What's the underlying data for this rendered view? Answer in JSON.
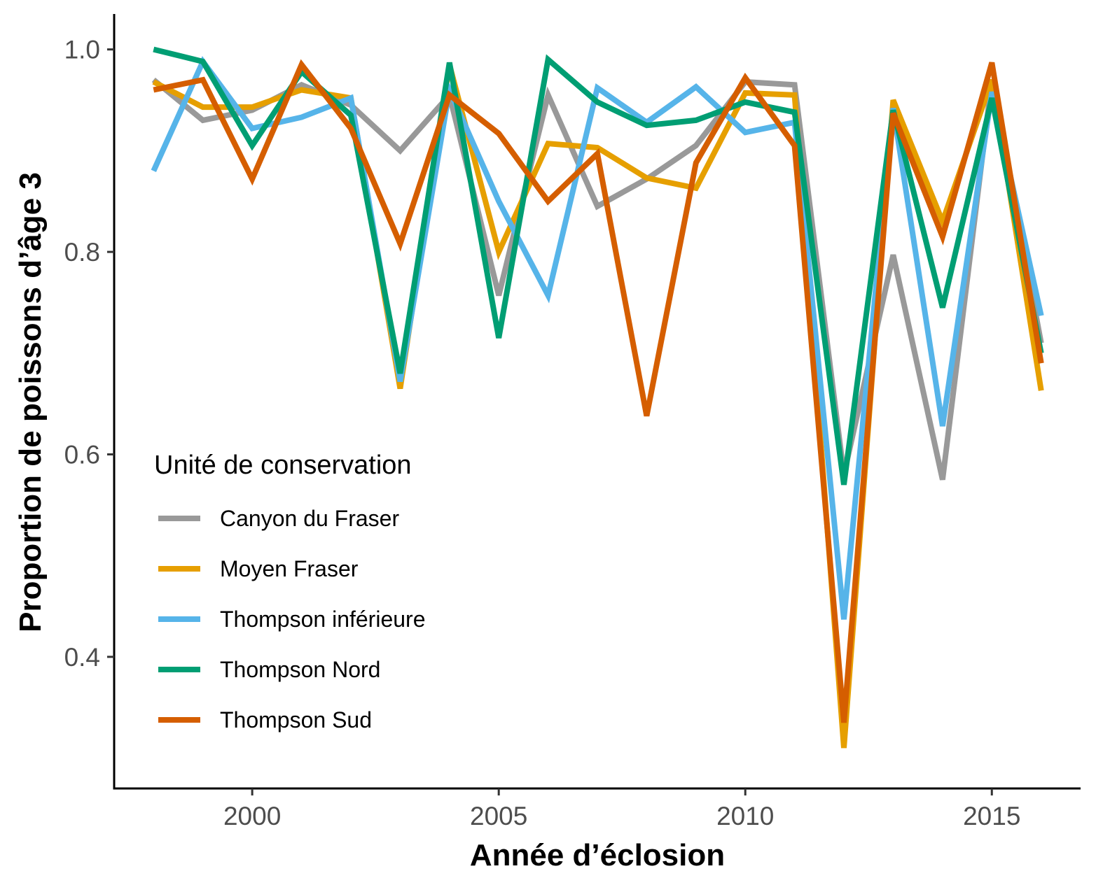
{
  "chart_data": {
    "type": "line",
    "title": "",
    "xlabel": "Année d’éclosion",
    "ylabel": "Proportion de poissons d’âge 3",
    "xlim": [
      1997.2,
      2016.8
    ],
    "ylim": [
      0.27,
      1.035
    ],
    "x_ticks": [
      2000,
      2005,
      2010,
      2015
    ],
    "y_ticks": [
      0.4,
      0.6,
      0.8,
      1.0
    ],
    "y_tick_labels": [
      "0.4",
      "0.6",
      "0.8",
      "1.0"
    ],
    "grid": false,
    "legend": {
      "title": "Unité de conservation",
      "position": "bottom-left"
    },
    "x": [
      1998,
      1999,
      2000,
      2001,
      2002,
      2003,
      2004,
      2005,
      2006,
      2007,
      2008,
      2009,
      2010,
      2011,
      2012,
      2013,
      2014,
      2015,
      2016
    ],
    "series": [
      {
        "name": "Canyon du Fraser",
        "color": "#999999",
        "values": [
          0.97,
          0.93,
          0.94,
          0.965,
          0.945,
          0.9,
          0.955,
          0.757,
          0.955,
          0.845,
          0.872,
          0.905,
          0.968,
          0.965,
          0.58,
          0.797,
          0.575,
          0.97,
          0.71
        ]
      },
      {
        "name": "Moyen Fraser",
        "color": "#E69F00",
        "values": [
          0.968,
          0.943,
          0.943,
          0.96,
          0.952,
          0.665,
          0.985,
          0.8,
          0.907,
          0.903,
          0.873,
          0.863,
          0.957,
          0.955,
          0.31,
          0.95,
          0.83,
          0.97,
          0.663
        ]
      },
      {
        "name": "Thompson inférieure",
        "color": "#56B4E9",
        "values": [
          0.88,
          0.988,
          0.922,
          0.933,
          0.952,
          0.672,
          0.96,
          0.85,
          0.757,
          0.962,
          0.928,
          0.963,
          0.918,
          0.928,
          0.437,
          0.942,
          0.628,
          0.958,
          0.737
        ]
      },
      {
        "name": "Thompson Nord",
        "color": "#009E73",
        "values": [
          1.0,
          0.988,
          0.905,
          0.978,
          0.935,
          0.68,
          0.987,
          0.715,
          0.99,
          0.948,
          0.925,
          0.93,
          0.948,
          0.938,
          0.57,
          0.94,
          0.745,
          0.952,
          0.7
        ]
      },
      {
        "name": "Thompson Sud",
        "color": "#D55E00",
        "values": [
          0.96,
          0.97,
          0.872,
          0.985,
          0.922,
          0.808,
          0.955,
          0.917,
          0.85,
          0.897,
          0.638,
          0.888,
          0.972,
          0.905,
          0.335,
          0.937,
          0.815,
          0.987,
          0.69
        ]
      }
    ]
  }
}
